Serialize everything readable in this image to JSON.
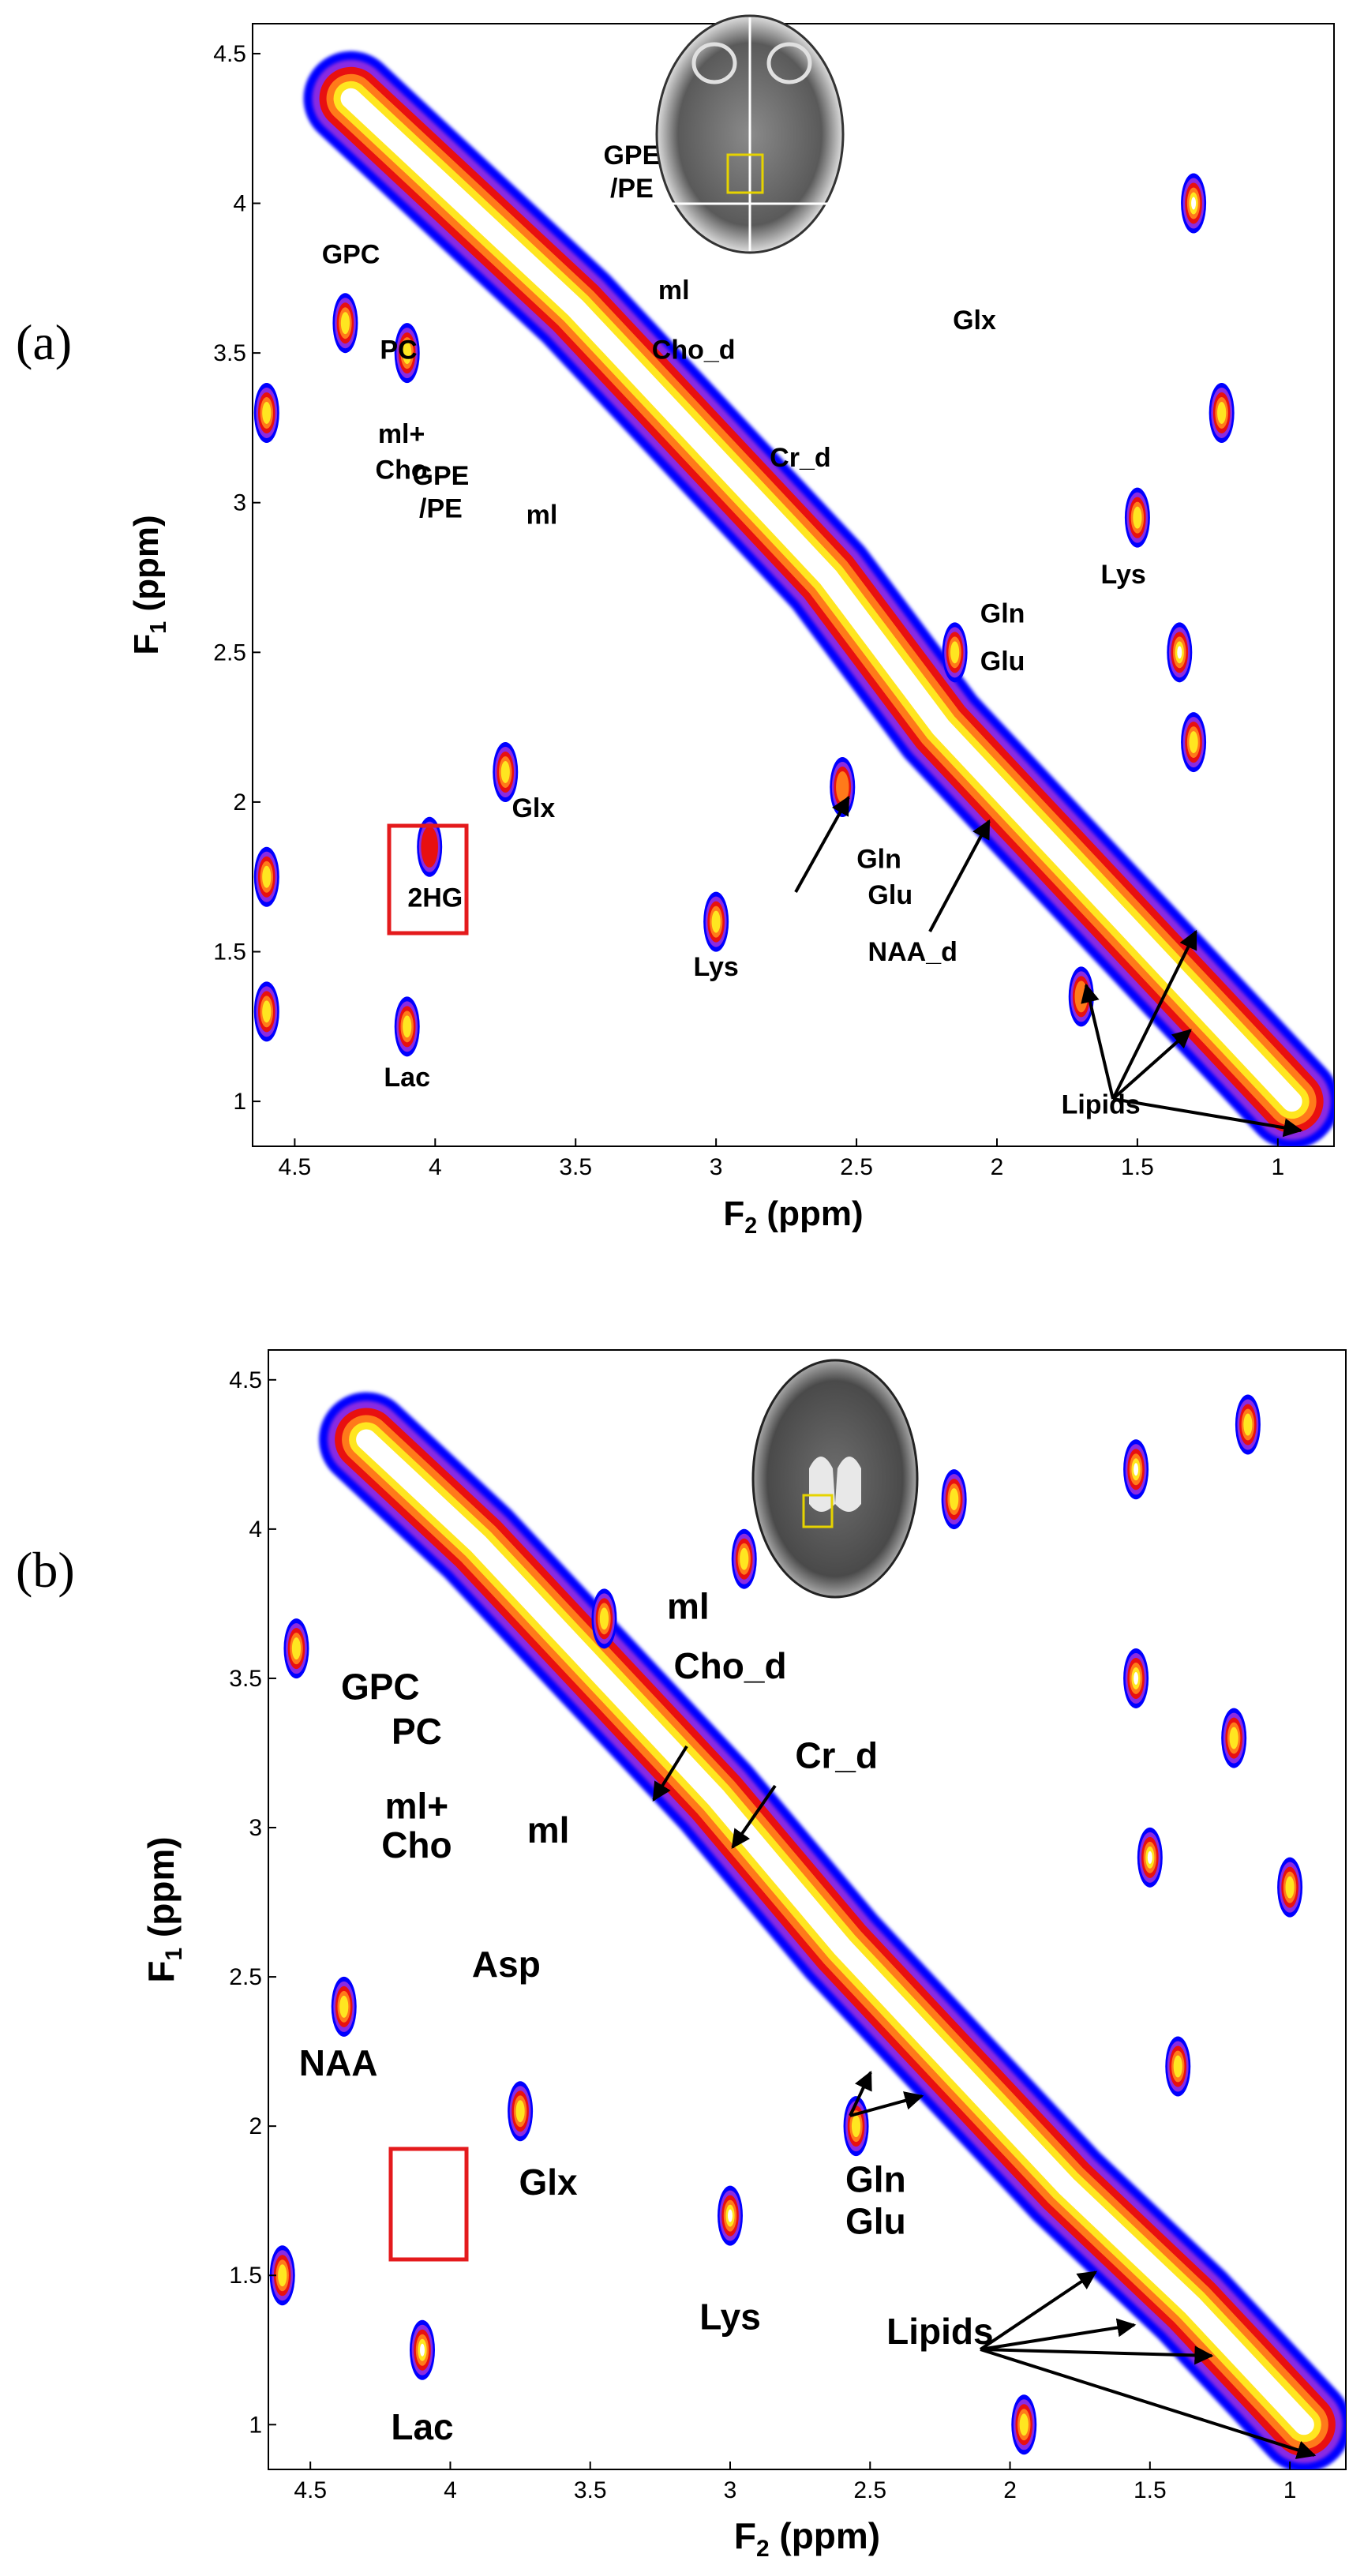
{
  "chart_data": [
    {
      "panel": "(a)",
      "type": "heatmap",
      "xlabel": "F",
      "xlabel_sub": "2",
      "xlabel_unit": " (ppm)",
      "ylabel": "F",
      "ylabel_sub": "1",
      "ylabel_unit": " (ppm)",
      "xlim": [
        4.65,
        0.8
      ],
      "ylim": [
        0.85,
        4.6
      ],
      "x_ticks": [
        "4.5",
        "4",
        "3.5",
        "3",
        "2.5",
        "2",
        "1.5",
        "1"
      ],
      "y_ticks": [
        "4.5",
        "4",
        "3.5",
        "3",
        "2.5",
        "2",
        "1.5",
        "1"
      ],
      "grid": false,
      "colormap": [
        "#0000ff",
        "#8a2be2",
        "#e81010",
        "#ff7a1a",
        "#ffe620",
        "#ffffff"
      ],
      "inset": "axial brain MRI with voxel box",
      "diagonal": [
        [
          4.3,
          4.35
        ],
        [
          3.9,
          4.0
        ],
        [
          3.5,
          3.65
        ],
        [
          3.05,
          3.2
        ],
        [
          2.6,
          2.75
        ],
        [
          2.2,
          2.25
        ],
        [
          1.8,
          1.85
        ],
        [
          1.35,
          1.4
        ],
        [
          0.95,
          1.0
        ]
      ],
      "peaks": [
        {
          "x": 4.32,
          "y": 3.6,
          "level": 3
        },
        {
          "x": 4.1,
          "y": 3.5,
          "level": 3
        },
        {
          "x": 4.1,
          "y": 1.25,
          "level": 3
        },
        {
          "x": 3.75,
          "y": 2.1,
          "level": 3
        },
        {
          "x": 3.0,
          "y": 1.6,
          "level": 3
        },
        {
          "x": 4.02,
          "y": 1.85,
          "level": 1
        },
        {
          "x": 2.15,
          "y": 2.5,
          "level": 3
        },
        {
          "x": 2.55,
          "y": 2.05,
          "level": 2
        },
        {
          "x": 1.5,
          "y": 2.95,
          "level": 3
        },
        {
          "x": 1.35,
          "y": 2.5,
          "level": 4
        },
        {
          "x": 1.3,
          "y": 4.0,
          "level": 4
        },
        {
          "x": 1.2,
          "y": 3.3,
          "level": 3
        },
        {
          "x": 1.3,
          "y": 2.2,
          "level": 3
        },
        {
          "x": 4.6,
          "y": 3.3,
          "level": 3
        },
        {
          "x": 4.6,
          "y": 1.75,
          "level": 3
        },
        {
          "x": 4.6,
          "y": 1.3,
          "level": 3
        },
        {
          "x": 1.7,
          "y": 1.35,
          "level": 2
        }
      ],
      "annotations": [
        {
          "text": "GPC",
          "x": 4.3,
          "y": 3.8
        },
        {
          "text": "PC",
          "x": 4.13,
          "y": 3.48
        },
        {
          "text": "ml+",
          "x": 4.12,
          "y": 3.2
        },
        {
          "text": "Cho",
          "x": 4.12,
          "y": 3.08
        },
        {
          "text": "GPE",
          "x": 3.98,
          "y": 3.06
        },
        {
          "text": "/PE",
          "x": 3.98,
          "y": 2.95
        },
        {
          "text": "ml",
          "x": 3.62,
          "y": 2.93
        },
        {
          "text": "GPE",
          "x": 3.3,
          "y": 4.13
        },
        {
          "text": "/PE",
          "x": 3.3,
          "y": 4.02
        },
        {
          "text": "ml",
          "x": 3.15,
          "y": 3.68
        },
        {
          "text": "Cho_d",
          "x": 3.08,
          "y": 3.48
        },
        {
          "text": "Cr_d",
          "x": 2.7,
          "y": 3.12
        },
        {
          "text": "Glx",
          "x": 2.08,
          "y": 3.58
        },
        {
          "text": "Lys",
          "x": 1.55,
          "y": 2.73
        },
        {
          "text": "Gln",
          "x": 1.98,
          "y": 2.6
        },
        {
          "text": "Glu",
          "x": 1.98,
          "y": 2.44
        },
        {
          "text": "Glx",
          "x": 3.65,
          "y": 1.95
        },
        {
          "text": "2HG",
          "x": 4.0,
          "y": 1.65
        },
        {
          "text": "Lys",
          "x": 3.0,
          "y": 1.42
        },
        {
          "text": "Lac",
          "x": 4.1,
          "y": 1.05
        },
        {
          "text": "Gln",
          "x": 2.42,
          "y": 1.78
        },
        {
          "text": "Glu",
          "x": 2.38,
          "y": 1.66
        },
        {
          "text": "NAA_d",
          "x": 2.3,
          "y": 1.47
        },
        {
          "text": "Lipids",
          "x": 1.63,
          "y": 0.96
        }
      ]
    },
    {
      "panel": "(b)",
      "type": "heatmap",
      "xlabel": "F",
      "xlabel_sub": "2",
      "xlabel_unit": " (ppm)",
      "ylabel": "F",
      "ylabel_sub": "1",
      "ylabel_unit": " (ppm)",
      "xlim": [
        4.65,
        0.8
      ],
      "ylim": [
        0.85,
        4.6
      ],
      "x_ticks": [
        "4.5",
        "4",
        "3.5",
        "3",
        "2.5",
        "2",
        "1.5",
        "1"
      ],
      "y_ticks": [
        "4.5",
        "4",
        "3.5",
        "3",
        "2.5",
        "2",
        "1.5",
        "1"
      ],
      "grid": false,
      "colormap": [
        "#0000ff",
        "#8a2be2",
        "#e81010",
        "#ff7a1a",
        "#ffe620",
        "#ffffff"
      ],
      "inset": "axial brain MRI with voxel box",
      "diagonal": [
        [
          4.3,
          4.3
        ],
        [
          3.9,
          3.95
        ],
        [
          3.5,
          3.55
        ],
        [
          3.05,
          3.1
        ],
        [
          2.6,
          2.6
        ],
        [
          2.2,
          2.2
        ],
        [
          1.8,
          1.8
        ],
        [
          1.35,
          1.4
        ],
        [
          0.95,
          1.0
        ]
      ],
      "peaks": [
        {
          "x": 4.38,
          "y": 2.4,
          "level": 3
        },
        {
          "x": 4.1,
          "y": 1.25,
          "level": 4
        },
        {
          "x": 3.75,
          "y": 2.05,
          "level": 3
        },
        {
          "x": 3.0,
          "y": 1.7,
          "level": 4
        },
        {
          "x": 2.95,
          "y": 3.9,
          "level": 3
        },
        {
          "x": 2.55,
          "y": 2.0,
          "level": 3
        },
        {
          "x": 2.2,
          "y": 4.1,
          "level": 3
        },
        {
          "x": 1.55,
          "y": 4.2,
          "level": 4
        },
        {
          "x": 1.55,
          "y": 3.5,
          "level": 4
        },
        {
          "x": 1.5,
          "y": 2.9,
          "level": 4
        },
        {
          "x": 1.4,
          "y": 2.2,
          "level": 3
        },
        {
          "x": 1.2,
          "y": 3.3,
          "level": 3
        },
        {
          "x": 1.15,
          "y": 4.35,
          "level": 3
        },
        {
          "x": 1.0,
          "y": 2.8,
          "level": 3
        },
        {
          "x": 4.55,
          "y": 3.6,
          "level": 3
        },
        {
          "x": 4.6,
          "y": 1.5,
          "level": 3
        },
        {
          "x": 3.45,
          "y": 3.7,
          "level": 3
        },
        {
          "x": 1.95,
          "y": 1.0,
          "level": 3
        }
      ],
      "annotations": [
        {
          "text": "ml",
          "x": 3.15,
          "y": 3.7
        },
        {
          "text": "Cho_d",
          "x": 3.0,
          "y": 3.5
        },
        {
          "text": "Cr_d",
          "x": 2.62,
          "y": 3.2
        },
        {
          "text": "GPC",
          "x": 4.25,
          "y": 3.43
        },
        {
          "text": "PC",
          "x": 4.12,
          "y": 3.28
        },
        {
          "text": "ml+",
          "x": 4.12,
          "y": 3.03
        },
        {
          "text": "Cho",
          "x": 4.12,
          "y": 2.9
        },
        {
          "text": "ml",
          "x": 3.65,
          "y": 2.95
        },
        {
          "text": "Asp",
          "x": 3.8,
          "y": 2.5
        },
        {
          "text": "NAA",
          "x": 4.4,
          "y": 2.17
        },
        {
          "text": "Glx",
          "x": 3.65,
          "y": 1.77
        },
        {
          "text": "Gln",
          "x": 2.48,
          "y": 1.78
        },
        {
          "text": "Glu",
          "x": 2.48,
          "y": 1.64
        },
        {
          "text": "Lys",
          "x": 3.0,
          "y": 1.32
        },
        {
          "text": "Lipids",
          "x": 2.25,
          "y": 1.27
        },
        {
          "text": "Lac",
          "x": 4.1,
          "y": 0.95
        }
      ]
    }
  ]
}
